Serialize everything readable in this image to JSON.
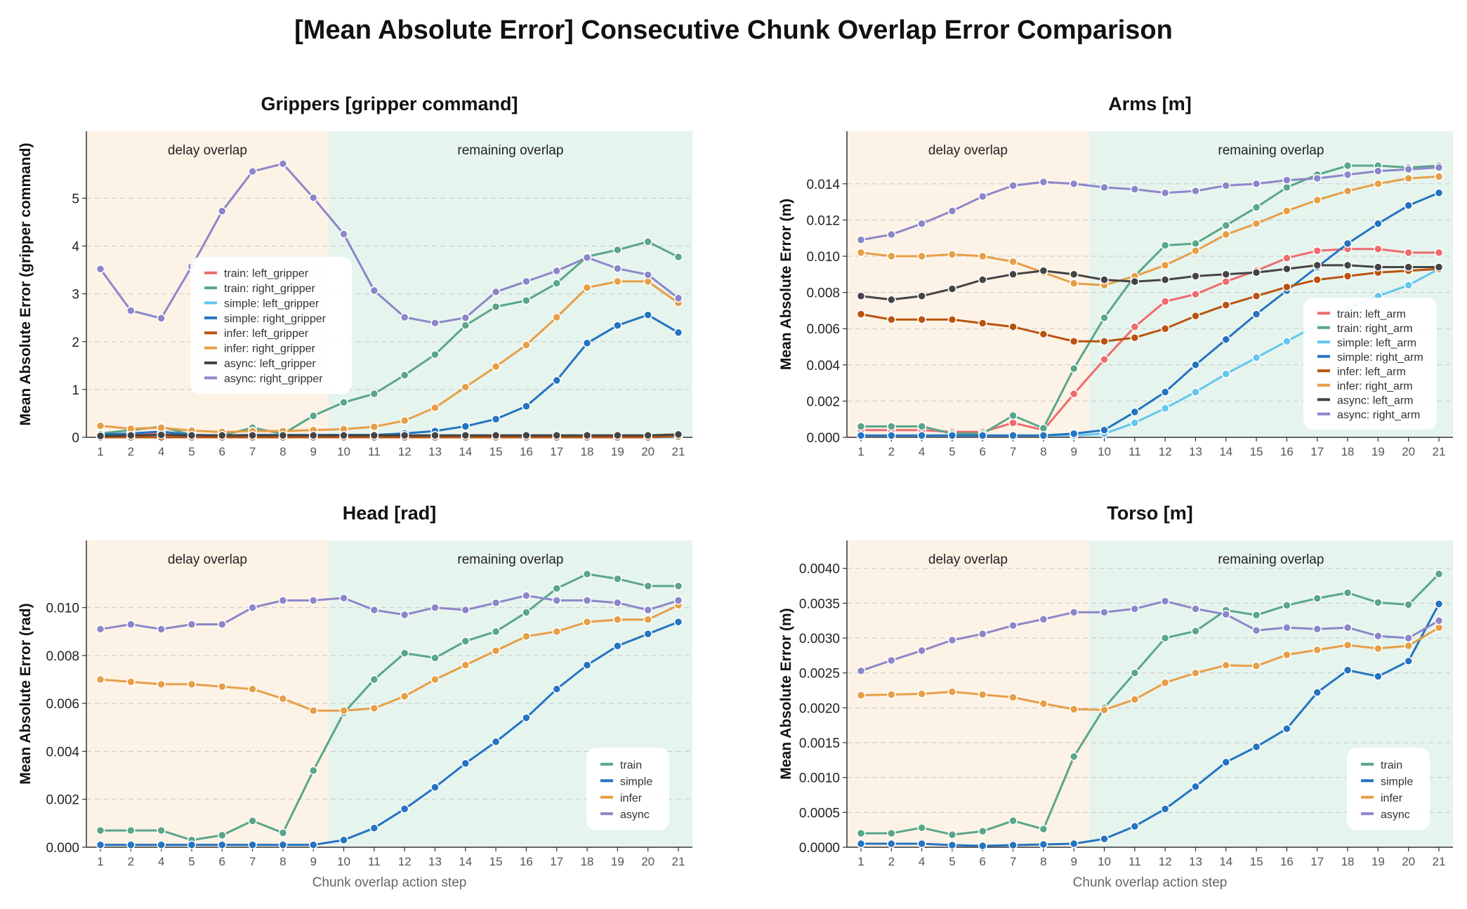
{
  "suptitle": "[Mean Absolute Error] Consecutive Chunk Overlap Error Comparison",
  "colors": {
    "train": "#59a689",
    "simple": "#2474c1",
    "infer": "#e69f47",
    "async": "#8c86c9",
    "train_left": "#ee6b6e",
    "train_right": "#59a689",
    "simple_left": "#63c6ec",
    "simple_right": "#2474c1",
    "infer_left": "#b9530f",
    "infer_right": "#e69f47",
    "async_left": "#444444",
    "async_right": "#8c86c9",
    "delay_bg": "#fdf2e6",
    "remaining_bg": "#e6f4ee"
  },
  "regions": {
    "delay_label": "delay overlap",
    "remaining_label": "remaining overlap",
    "split_after_category": "9"
  },
  "chart_data": [
    {
      "type": "line",
      "title": "Grippers [gripper command]",
      "xlabel": "",
      "ylabel": "Mean Absolute Error (gripper command)",
      "categories": [
        "1",
        "2",
        "4",
        "5",
        "6",
        "7",
        "8",
        "9",
        "10",
        "11",
        "12",
        "13",
        "14",
        "15",
        "16",
        "17",
        "18",
        "19",
        "20",
        "21"
      ],
      "ylim": [
        0,
        6.4
      ],
      "yticks": [
        "0",
        "1",
        "2",
        "3",
        "4",
        "5"
      ],
      "ytick_values": [
        0,
        1,
        2,
        3,
        4,
        5
      ],
      "grid": "horizontal dashed",
      "legend_position": "center-left",
      "series": [
        {
          "name": "train: left_gripper",
          "color_key": "train_left",
          "values": [
            0.05,
            0.04,
            0.08,
            0.03,
            0.02,
            0.05,
            0.04,
            0.02,
            0.02,
            0.02,
            0.02,
            0.02,
            0.02,
            0.02,
            0.02,
            0.02,
            0.02,
            0.02,
            0.02,
            0.02
          ]
        },
        {
          "name": "train: right_gripper",
          "color_key": "train_right",
          "values": [
            0.08,
            0.15,
            0.22,
            0.05,
            0.04,
            0.2,
            0.07,
            0.45,
            0.73,
            0.91,
            1.3,
            1.73,
            2.34,
            2.73,
            2.86,
            3.22,
            3.78,
            3.92,
            4.09,
            3.77
          ]
        },
        {
          "name": "simple: left_gripper",
          "color_key": "simple_left",
          "values": [
            0.0,
            0.0,
            0.0,
            0.0,
            0.0,
            0.0,
            0.0,
            0.0,
            0.0,
            0.0,
            0.0,
            0.0,
            0.0,
            0.0,
            0.0,
            0.0,
            0.0,
            0.0,
            0.0,
            0.0
          ]
        },
        {
          "name": "simple: right_gripper",
          "color_key": "simple_right",
          "values": [
            0.06,
            0.08,
            0.12,
            0.05,
            0.04,
            0.05,
            0.05,
            0.05,
            0.05,
            0.05,
            0.08,
            0.13,
            0.23,
            0.38,
            0.65,
            1.19,
            1.97,
            2.34,
            2.56,
            2.19
          ]
        },
        {
          "name": "infer: left_gripper",
          "color_key": "infer_left",
          "values": [
            0.0,
            0.0,
            0.0,
            0.0,
            0.0,
            0.0,
            0.0,
            0.0,
            0.0,
            0.0,
            0.0,
            0.0,
            0.0,
            0.0,
            0.0,
            0.0,
            0.0,
            0.0,
            0.0,
            0.02
          ]
        },
        {
          "name": "infer: right_gripper",
          "color_key": "infer_right",
          "values": [
            0.24,
            0.18,
            0.2,
            0.14,
            0.11,
            0.13,
            0.13,
            0.15,
            0.17,
            0.22,
            0.35,
            0.62,
            1.05,
            1.48,
            1.93,
            2.51,
            3.13,
            3.26,
            3.26,
            2.81
          ]
        },
        {
          "name": "async: left_gripper",
          "color_key": "async_left",
          "values": [
            0.03,
            0.04,
            0.05,
            0.04,
            0.04,
            0.04,
            0.04,
            0.04,
            0.04,
            0.04,
            0.04,
            0.04,
            0.04,
            0.04,
            0.04,
            0.04,
            0.04,
            0.04,
            0.04,
            0.06
          ]
        },
        {
          "name": "async: right_gripper",
          "color_key": "async_right",
          "values": [
            3.52,
            2.65,
            2.49,
            3.57,
            4.73,
            5.56,
            5.72,
            5.01,
            4.25,
            3.07,
            2.51,
            2.39,
            2.5,
            3.04,
            3.26,
            3.48,
            3.76,
            3.53,
            3.4,
            2.91
          ]
        }
      ]
    },
    {
      "type": "line",
      "title": "Arms [m]",
      "xlabel": "",
      "ylabel": "Mean Absolute Error (m)",
      "categories": [
        "1",
        "2",
        "4",
        "5",
        "6",
        "7",
        "8",
        "9",
        "10",
        "11",
        "12",
        "13",
        "14",
        "15",
        "16",
        "17",
        "18",
        "19",
        "20",
        "21"
      ],
      "ylim": [
        0,
        0.0169
      ],
      "yticks": [
        "0.000",
        "0.002",
        "0.004",
        "0.006",
        "0.008",
        "0.010",
        "0.012",
        "0.014"
      ],
      "ytick_values": [
        0,
        0.002,
        0.004,
        0.006,
        0.008,
        0.01,
        0.012,
        0.014
      ],
      "grid": "horizontal dashed",
      "legend_position": "center-right",
      "series": [
        {
          "name": "train: left_arm",
          "color_key": "train_left",
          "values": [
            0.0004,
            0.0004,
            0.0004,
            0.0003,
            0.0003,
            0.0008,
            0.0004,
            0.0024,
            0.0043,
            0.0061,
            0.0075,
            0.0079,
            0.0086,
            0.0092,
            0.0099,
            0.0103,
            0.0104,
            0.0104,
            0.0102,
            0.0102
          ]
        },
        {
          "name": "train: right_arm",
          "color_key": "train_right",
          "values": [
            0.0006,
            0.0006,
            0.0006,
            0.0002,
            0.0002,
            0.0012,
            0.0005,
            0.0038,
            0.0066,
            0.0089,
            0.0106,
            0.0107,
            0.0117,
            0.0127,
            0.0138,
            0.0145,
            0.015,
            0.015,
            0.0149,
            0.015
          ]
        },
        {
          "name": "simple: left_arm",
          "color_key": "simple_left",
          "values": [
            0.0001,
            0.0001,
            0.0001,
            0.0001,
            0.0001,
            0.0001,
            0.0001,
            0.0001,
            0.0002,
            0.0008,
            0.0016,
            0.0025,
            0.0035,
            0.0044,
            0.0053,
            0.0062,
            0.0071,
            0.0078,
            0.0084,
            0.0093
          ]
        },
        {
          "name": "simple: right_arm",
          "color_key": "simple_right",
          "values": [
            0.0001,
            0.0001,
            0.0001,
            0.0001,
            0.0001,
            0.0001,
            0.0001,
            0.0002,
            0.0004,
            0.0014,
            0.0025,
            0.004,
            0.0054,
            0.0068,
            0.0081,
            0.0094,
            0.0107,
            0.0118,
            0.0128,
            0.0135
          ]
        },
        {
          "name": "infer: left_arm",
          "color_key": "infer_left",
          "values": [
            0.0068,
            0.0065,
            0.0065,
            0.0065,
            0.0063,
            0.0061,
            0.0057,
            0.0053,
            0.0053,
            0.0055,
            0.006,
            0.0067,
            0.0073,
            0.0078,
            0.0083,
            0.0087,
            0.0089,
            0.0091,
            0.0092,
            0.0093
          ]
        },
        {
          "name": "infer: right_arm",
          "color_key": "infer_right",
          "values": [
            0.0102,
            0.01,
            0.01,
            0.0101,
            0.01,
            0.0097,
            0.0091,
            0.0085,
            0.0084,
            0.0089,
            0.0095,
            0.0103,
            0.0112,
            0.0118,
            0.0125,
            0.0131,
            0.0136,
            0.014,
            0.0143,
            0.0144
          ]
        },
        {
          "name": "async: left_arm",
          "color_key": "async_left",
          "values": [
            0.0078,
            0.0076,
            0.0078,
            0.0082,
            0.0087,
            0.009,
            0.0092,
            0.009,
            0.0087,
            0.0086,
            0.0087,
            0.0089,
            0.009,
            0.0091,
            0.0093,
            0.0095,
            0.0095,
            0.0094,
            0.0094,
            0.0094
          ]
        },
        {
          "name": "async: right_arm",
          "color_key": "async_right",
          "values": [
            0.0109,
            0.0112,
            0.0118,
            0.0125,
            0.0133,
            0.0139,
            0.0141,
            0.014,
            0.0138,
            0.0137,
            0.0135,
            0.0136,
            0.0139,
            0.014,
            0.0142,
            0.0143,
            0.0145,
            0.0147,
            0.0148,
            0.0149
          ]
        }
      ]
    },
    {
      "type": "line",
      "title": "Head [rad]",
      "xlabel": "Chunk overlap action step",
      "ylabel": "Mean Absolute Error (rad)",
      "categories": [
        "1",
        "2",
        "4",
        "5",
        "6",
        "7",
        "8",
        "9",
        "10",
        "11",
        "12",
        "13",
        "14",
        "15",
        "16",
        "17",
        "18",
        "19",
        "20",
        "21"
      ],
      "ylim": [
        0,
        0.0128
      ],
      "yticks": [
        "0.000",
        "0.002",
        "0.004",
        "0.006",
        "0.008",
        "0.010"
      ],
      "ytick_values": [
        0,
        0.002,
        0.004,
        0.006,
        0.008,
        0.01
      ],
      "grid": "horizontal dashed",
      "legend_position": "lower-right",
      "series": [
        {
          "name": "train",
          "color_key": "train",
          "values": [
            0.0007,
            0.0007,
            0.0007,
            0.0003,
            0.0005,
            0.0011,
            0.0006,
            0.0032,
            0.0056,
            0.007,
            0.0081,
            0.0079,
            0.0086,
            0.009,
            0.0098,
            0.0108,
            0.0114,
            0.0112,
            0.0109,
            0.0109
          ]
        },
        {
          "name": "simple",
          "color_key": "simple",
          "values": [
            0.0001,
            0.0001,
            0.0001,
            0.0001,
            0.0001,
            0.0001,
            0.0001,
            0.0001,
            0.0003,
            0.0008,
            0.0016,
            0.0025,
            0.0035,
            0.0044,
            0.0054,
            0.0066,
            0.0076,
            0.0084,
            0.0089,
            0.0094
          ]
        },
        {
          "name": "infer",
          "color_key": "infer",
          "values": [
            0.007,
            0.0069,
            0.0068,
            0.0068,
            0.0067,
            0.0066,
            0.0062,
            0.0057,
            0.0057,
            0.0058,
            0.0063,
            0.007,
            0.0076,
            0.0082,
            0.0088,
            0.009,
            0.0094,
            0.0095,
            0.0095,
            0.0101
          ]
        },
        {
          "name": "async",
          "color_key": "async",
          "values": [
            0.0091,
            0.0093,
            0.0091,
            0.0093,
            0.0093,
            0.01,
            0.0103,
            0.0103,
            0.0104,
            0.0099,
            0.0097,
            0.01,
            0.0099,
            0.0102,
            0.0105,
            0.0103,
            0.0103,
            0.0102,
            0.0099,
            0.0103
          ]
        }
      ]
    },
    {
      "type": "line",
      "title": "Torso [m]",
      "xlabel": "Chunk overlap action step",
      "ylabel": "Mean Absolute Error (m)",
      "categories": [
        "1",
        "2",
        "4",
        "5",
        "6",
        "7",
        "8",
        "9",
        "10",
        "11",
        "12",
        "13",
        "14",
        "15",
        "16",
        "17",
        "18",
        "19",
        "20",
        "21"
      ],
      "ylim": [
        0,
        0.0044
      ],
      "yticks": [
        "0.0000",
        "0.0005",
        "0.0010",
        "0.0015",
        "0.0020",
        "0.0025",
        "0.0030",
        "0.0035",
        "0.0040"
      ],
      "ytick_values": [
        0,
        0.0005,
        0.001,
        0.0015,
        0.002,
        0.0025,
        0.003,
        0.0035,
        0.004
      ],
      "grid": "horizontal dashed",
      "legend_position": "lower-right",
      "series": [
        {
          "name": "train",
          "color_key": "train",
          "values": [
            0.0002,
            0.0002,
            0.00028,
            0.00018,
            0.00023,
            0.00038,
            0.00026,
            0.0013,
            0.002,
            0.0025,
            0.003,
            0.0031,
            0.0034,
            0.00333,
            0.00347,
            0.00357,
            0.00365,
            0.00351,
            0.00348,
            0.00392
          ]
        },
        {
          "name": "simple",
          "color_key": "simple",
          "values": [
            5e-05,
            5e-05,
            5e-05,
            3e-05,
            2e-05,
            3e-05,
            4e-05,
            5e-05,
            0.00012,
            0.0003,
            0.00055,
            0.00087,
            0.00122,
            0.00144,
            0.0017,
            0.00222,
            0.00254,
            0.00245,
            0.00267,
            0.00349
          ]
        },
        {
          "name": "infer",
          "color_key": "infer",
          "values": [
            0.00218,
            0.00219,
            0.0022,
            0.00223,
            0.00219,
            0.00215,
            0.00206,
            0.00198,
            0.00197,
            0.00212,
            0.00236,
            0.0025,
            0.00261,
            0.0026,
            0.00276,
            0.00283,
            0.0029,
            0.00285,
            0.00289,
            0.00315
          ]
        },
        {
          "name": "async",
          "color_key": "async",
          "values": [
            0.00253,
            0.00268,
            0.00282,
            0.00297,
            0.00306,
            0.00318,
            0.00327,
            0.00337,
            0.00337,
            0.00342,
            0.00353,
            0.00342,
            0.00334,
            0.00311,
            0.00315,
            0.00313,
            0.00315,
            0.00303,
            0.003,
            0.00325
          ]
        }
      ]
    }
  ]
}
